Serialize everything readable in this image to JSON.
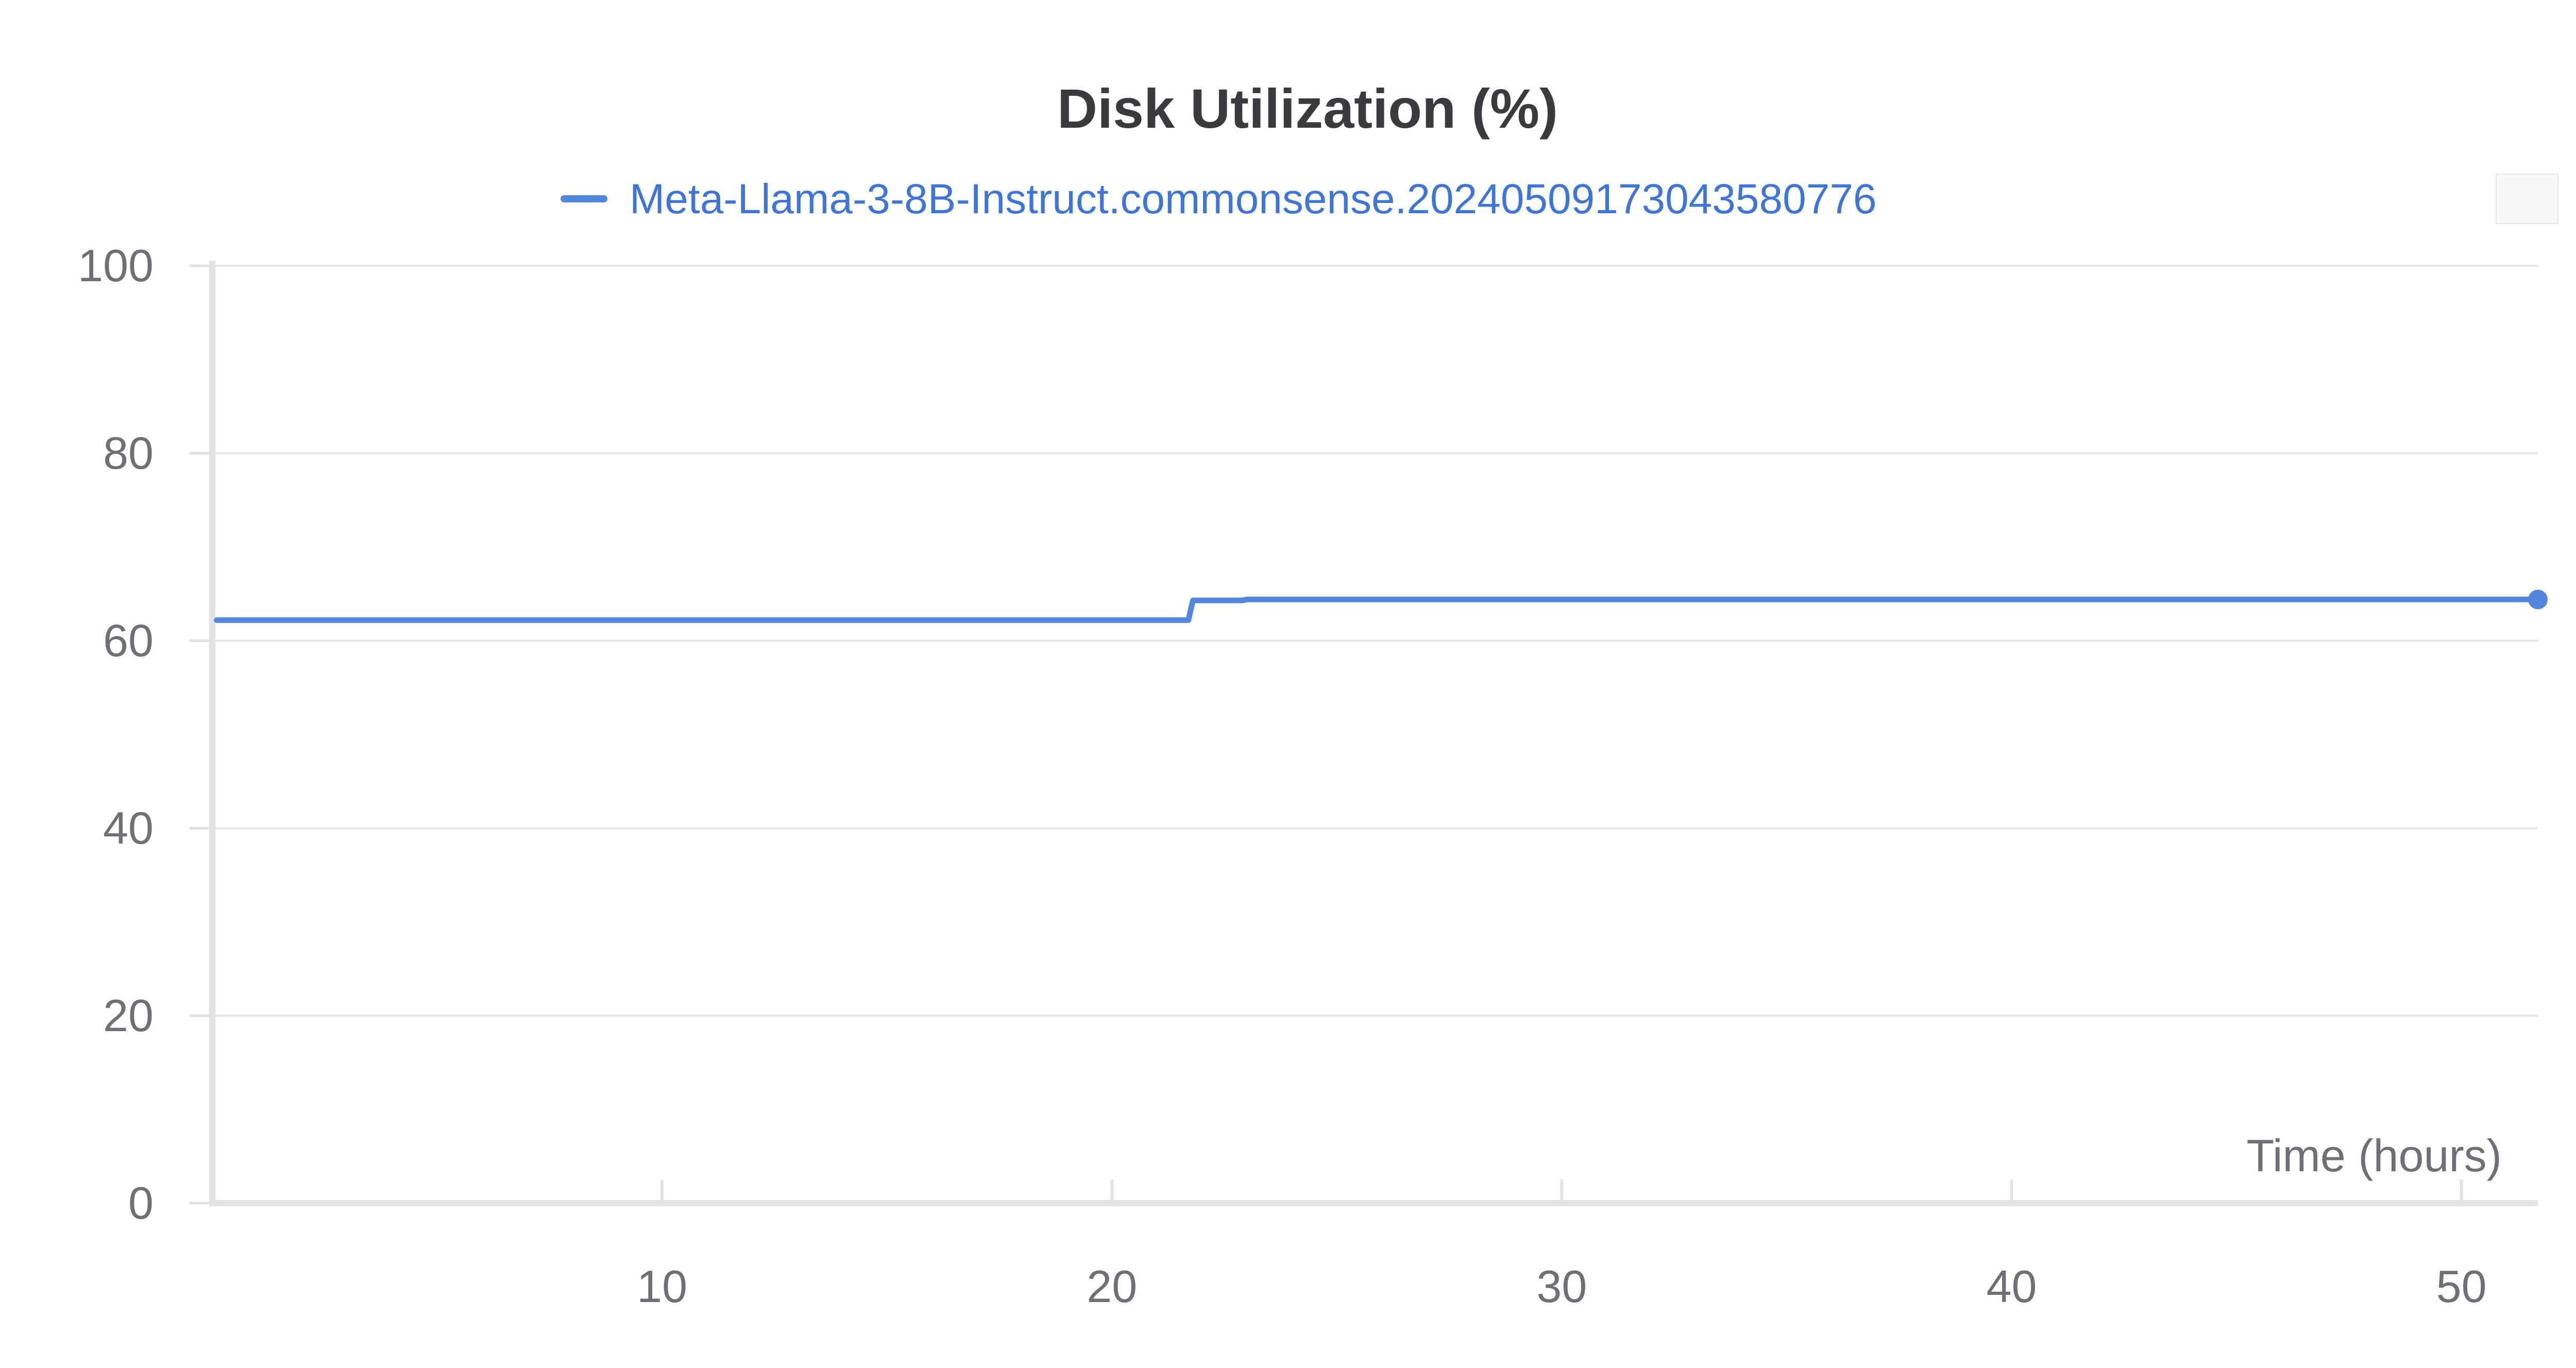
{
  "chart_data": {
    "type": "line",
    "title": "Disk Utilization (%)",
    "xlabel": "Time (hours)",
    "ylabel": "",
    "xlim": [
      0,
      51.7
    ],
    "ylim": [
      0,
      100
    ],
    "x_ticks": [
      10,
      20,
      30,
      40,
      50
    ],
    "y_ticks": [
      0,
      20,
      40,
      60,
      80,
      100
    ],
    "grid": true,
    "legend_position": "top-center",
    "series": [
      {
        "name": "Meta-Llama-3-8B-Instruct.commonsense.20240509173043580776",
        "color": "#5387dd",
        "x": [
          0.1,
          21.7,
          21.8,
          22.9,
          23.0,
          51.7
        ],
        "y": [
          62.2,
          62.2,
          64.3,
          64.3,
          64.4,
          64.4
        ]
      }
    ]
  }
}
